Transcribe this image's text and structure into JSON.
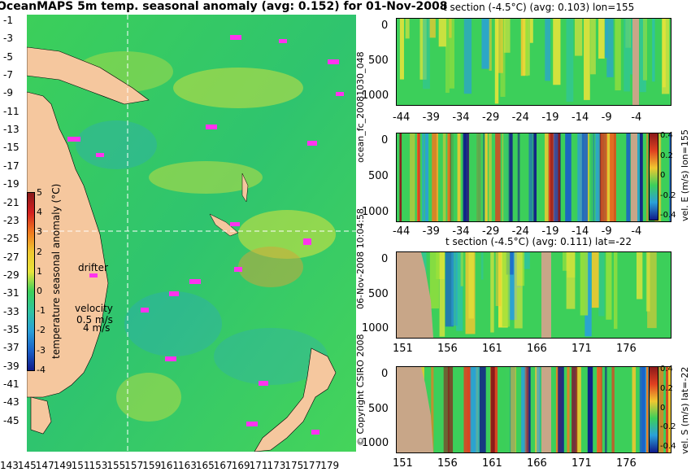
{
  "main_title": "OceanMAPS 5m temp. seasonal anomaly (avg: 0.152) for 01-Nov-2008",
  "map": {
    "y_ticks": [
      "-1",
      "-3",
      "-5",
      "-7",
      "-9",
      "-11",
      "-13",
      "-15",
      "-17",
      "-19",
      "-21",
      "-23",
      "-25",
      "-27",
      "-29",
      "-31",
      "-33",
      "-35",
      "-37",
      "-39",
      "-41",
      "-43",
      "-45"
    ],
    "x_ticks": [
      "143",
      "145",
      "147",
      "149",
      "151",
      "153",
      "155",
      "157",
      "159",
      "161",
      "163",
      "165",
      "167",
      "169",
      "171",
      "173",
      "175",
      "177",
      "179"
    ],
    "colorbar_label": "temperature seasonal anomaly (°C)",
    "colorbar_ticks": [
      "5",
      "4",
      "3",
      "2",
      "1",
      "0",
      "-1",
      "-2",
      "-3",
      "-4"
    ],
    "drifter_label": "drifter",
    "velocity_label": "velocity",
    "velocity_value": "0.5 m/s",
    "velocity_value2": "4 m/s",
    "colors": {
      "land": "#f5c79e",
      "ocean": "#3ccf5a",
      "anomaly_warm": "#e8e43a",
      "anomaly_cool": "#2aa0d8",
      "drifter": "#ff33ee"
    }
  },
  "panel1": {
    "title": "t section (-4.5°C) (avg: 0.103) lon=155",
    "y_ticks": [
      "0",
      "500",
      "1000"
    ],
    "x_ticks": [
      "-44",
      "-39",
      "-34",
      "-29",
      "-24",
      "-19",
      "-14",
      "-9",
      "-4"
    ]
  },
  "panel2": {
    "title": "",
    "y_ticks": [
      "0",
      "500",
      "1000"
    ],
    "x_ticks": [
      "-44",
      "-39",
      "-34",
      "-29",
      "-24",
      "-19",
      "-14",
      "-9",
      "-4"
    ],
    "cbar_label": "vel. E (m/s) lon=155",
    "cbar_ticks": [
      "0.4",
      "0.2",
      "0",
      "-0.2",
      "-0.4"
    ]
  },
  "panel3": {
    "title": "t section (-4.5°C) (avg: 0.111) lat=-22",
    "y_ticks": [
      "0",
      "500",
      "1000"
    ],
    "x_ticks": [
      "151",
      "156",
      "161",
      "166",
      "171",
      "176"
    ]
  },
  "panel4": {
    "title": "",
    "y_ticks": [
      "0",
      "500",
      "1000"
    ],
    "x_ticks": [
      "151",
      "156",
      "161",
      "166",
      "171",
      "176"
    ],
    "cbar_label": "vel. S (m/s) lat=-22",
    "cbar_ticks": [
      "0.4",
      "0.2",
      "0",
      "-0.2",
      "-0.4"
    ]
  },
  "side_labels": {
    "a": "ocean_fc_20081030_048",
    "b": "06-Nov-2008 10:04:58",
    "c": "© Copyright CSIRO 2008"
  }
}
